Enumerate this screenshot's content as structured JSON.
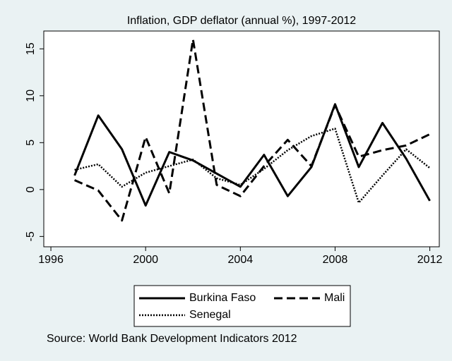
{
  "chart_data": {
    "type": "line",
    "title": "Inflation, GDP deflator (annual %), 1997-2012",
    "note": "Source: World Bank Development Indicators 2012",
    "x": [
      1997,
      1998,
      1999,
      2000,
      2001,
      2002,
      2003,
      2004,
      2005,
      2006,
      2007,
      2008,
      2009,
      2010,
      2011,
      2012
    ],
    "series": [
      {
        "name": "Burkina Faso",
        "color": "#000000",
        "pattern": "solid",
        "values": [
          1.5,
          7.9,
          4.3,
          -1.7,
          4.0,
          3.1,
          1.7,
          0.3,
          3.7,
          -0.7,
          2.4,
          9.1,
          2.4,
          7.1,
          3.3,
          -1.2
        ]
      },
      {
        "name": "Mali",
        "color": "#000000",
        "pattern": "dash",
        "values": [
          1.0,
          -0.1,
          -3.3,
          5.6,
          -0.4,
          16.0,
          0.5,
          -0.7,
          2.5,
          5.3,
          2.5,
          9.0,
          3.5,
          4.2,
          4.7,
          5.9
        ]
      },
      {
        "name": "Senegal",
        "color": "#000000",
        "pattern": "dot",
        "values": [
          2.1,
          2.7,
          0.3,
          1.8,
          2.5,
          3.2,
          1.2,
          0.5,
          2.2,
          4.2,
          5.7,
          6.5,
          -1.4,
          1.5,
          4.3,
          2.3
        ]
      }
    ],
    "xlim": [
      1995.7,
      2012.4
    ],
    "xticks": [
      1996,
      2000,
      2004,
      2008,
      2012
    ],
    "ylim": [
      -6.1,
      16.9
    ],
    "yticks": [
      -5,
      0,
      5,
      10,
      15
    ],
    "grid": false
  }
}
